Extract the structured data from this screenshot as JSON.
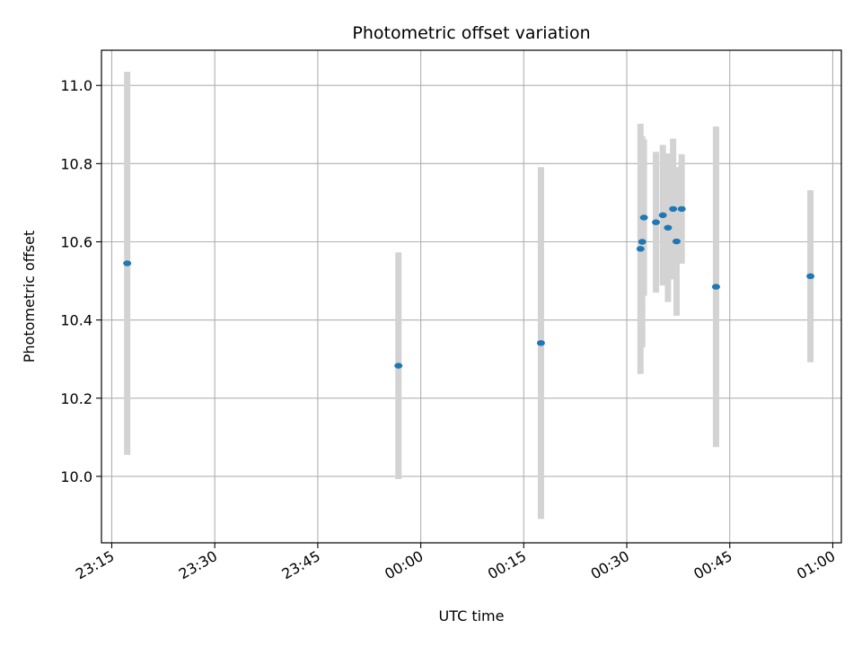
{
  "chart_data": {
    "type": "scatter",
    "title": "Photometric offset variation",
    "xlabel": "UTC time",
    "ylabel": "Photometric offset",
    "grid": true,
    "legend": "none",
    "colors": {
      "points": "#1f77b4",
      "errorbars": "#d3d3d3",
      "grid": "#b0b0b0",
      "axes": "#000000"
    },
    "x_ticks": [
      "23:15",
      "23:30",
      "23:45",
      "00:00",
      "00:15",
      "00:30",
      "00:45",
      "01:00"
    ],
    "y_ticks": [
      "10.0",
      "10.2",
      "10.4",
      "10.6",
      "10.8",
      "11.0"
    ],
    "ylim": [
      9.83,
      11.09
    ],
    "xlim": [
      "23:13:30",
      "01:01:15"
    ],
    "series": [
      {
        "points": [
          {
            "x": "23:17:15",
            "y": 10.545,
            "err": 0.49
          },
          {
            "x": "23:56:45",
            "y": 10.283,
            "err": 0.29
          },
          {
            "x": "00:17:30",
            "y": 10.341,
            "err": 0.45
          },
          {
            "x": "00:32:00",
            "y": 10.582,
            "err": 0.32
          },
          {
            "x": "00:32:15",
            "y": 10.6,
            "err": 0.27
          },
          {
            "x": "00:32:30",
            "y": 10.662,
            "err": 0.2
          },
          {
            "x": "00:34:15",
            "y": 10.65,
            "err": 0.18
          },
          {
            "x": "00:35:15",
            "y": 10.668,
            "err": 0.18
          },
          {
            "x": "00:36:00",
            "y": 10.636,
            "err": 0.19
          },
          {
            "x": "00:36:45",
            "y": 10.684,
            "err": 0.18
          },
          {
            "x": "00:37:15",
            "y": 10.601,
            "err": 0.19
          },
          {
            "x": "00:38:00",
            "y": 10.684,
            "err": 0.14
          },
          {
            "x": "00:43:00",
            "y": 10.485,
            "err": 0.41
          },
          {
            "x": "00:56:45",
            "y": 10.512,
            "err": 0.22
          }
        ]
      }
    ]
  }
}
